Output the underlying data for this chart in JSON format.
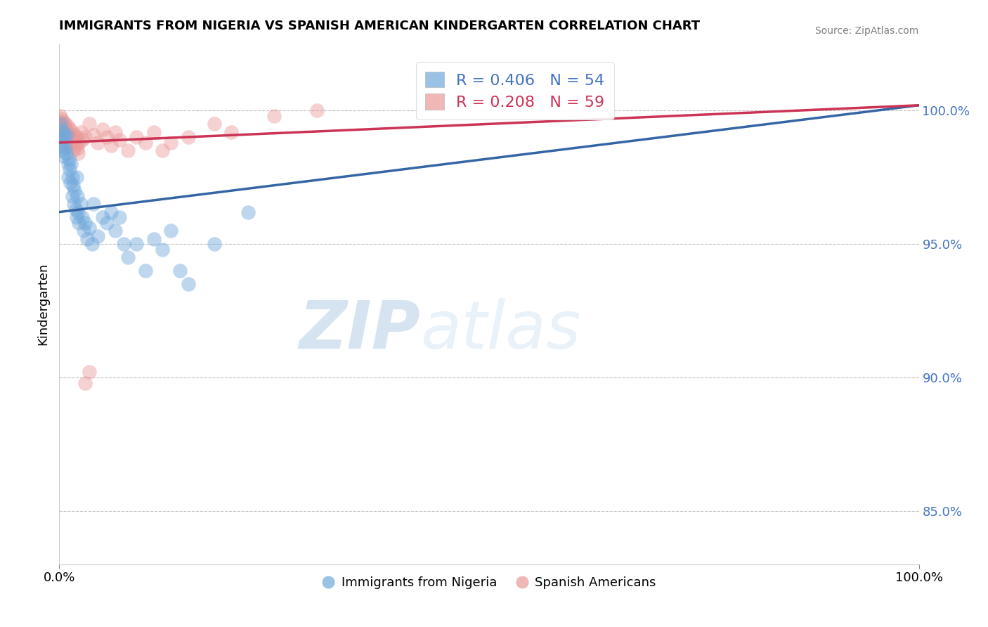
{
  "title": "IMMIGRANTS FROM NIGERIA VS SPANISH AMERICAN KINDERGARTEN CORRELATION CHART",
  "source": "Source: ZipAtlas.com",
  "ylabel": "Kindergarten",
  "xlim": [
    0.0,
    100.0
  ],
  "ylim": [
    83.0,
    102.5
  ],
  "yticks": [
    85.0,
    90.0,
    95.0,
    100.0
  ],
  "xticks": [
    0.0,
    100.0
  ],
  "xtick_labels": [
    "0.0%",
    "100.0%"
  ],
  "ytick_labels": [
    "85.0%",
    "90.0%",
    "95.0%",
    "100.0%"
  ],
  "blue_R": 0.406,
  "blue_N": 54,
  "pink_R": 0.208,
  "pink_N": 59,
  "blue_color": "#6fa8dc",
  "pink_color": "#ea9999",
  "blue_line_color": "#3465a4",
  "pink_line_color": "#cc3355",
  "legend_blue_label": "Immigrants from Nigeria",
  "legend_pink_label": "Spanish Americans",
  "watermark_zip": "ZIP",
  "watermark_atlas": "atlas",
  "blue_scatter_x": [
    0.1,
    0.2,
    0.2,
    0.3,
    0.3,
    0.4,
    0.5,
    0.5,
    0.6,
    0.7,
    0.8,
    0.9,
    1.0,
    1.0,
    1.1,
    1.2,
    1.3,
    1.4,
    1.5,
    1.5,
    1.6,
    1.7,
    1.8,
    1.9,
    2.0,
    2.0,
    2.1,
    2.2,
    2.3,
    2.5,
    2.7,
    2.8,
    3.0,
    3.2,
    3.5,
    3.8,
    4.0,
    4.5,
    5.0,
    5.5,
    6.0,
    6.5,
    7.0,
    7.5,
    8.0,
    9.0,
    10.0,
    11.0,
    12.0,
    13.0,
    14.0,
    15.0,
    18.0,
    22.0
  ],
  "blue_scatter_y": [
    99.5,
    99.3,
    98.8,
    99.0,
    98.5,
    98.7,
    99.2,
    98.3,
    99.0,
    98.6,
    98.4,
    99.1,
    98.0,
    97.5,
    98.2,
    97.8,
    97.3,
    98.0,
    97.5,
    96.8,
    97.2,
    96.5,
    97.0,
    96.3,
    97.5,
    96.0,
    96.8,
    96.2,
    95.8,
    96.5,
    96.0,
    95.5,
    95.8,
    95.2,
    95.6,
    95.0,
    96.5,
    95.3,
    96.0,
    95.8,
    96.2,
    95.5,
    96.0,
    95.0,
    94.5,
    95.0,
    94.0,
    95.2,
    94.8,
    95.5,
    94.0,
    93.5,
    95.0,
    96.2
  ],
  "pink_scatter_x": [
    0.1,
    0.1,
    0.2,
    0.2,
    0.2,
    0.3,
    0.3,
    0.4,
    0.4,
    0.5,
    0.5,
    0.6,
    0.6,
    0.7,
    0.7,
    0.8,
    0.8,
    0.9,
    0.9,
    1.0,
    1.0,
    1.0,
    1.1,
    1.2,
    1.3,
    1.4,
    1.5,
    1.6,
    1.7,
    1.8,
    1.9,
    2.0,
    2.1,
    2.2,
    2.3,
    2.5,
    2.7,
    3.0,
    3.5,
    4.0,
    4.5,
    5.0,
    5.5,
    6.0,
    6.5,
    7.0,
    8.0,
    9.0,
    10.0,
    11.0,
    12.0,
    13.0,
    15.0,
    18.0,
    20.0,
    25.0,
    30.0,
    3.0,
    3.5
  ],
  "pink_scatter_y": [
    99.8,
    99.5,
    99.7,
    99.3,
    99.6,
    99.5,
    99.2,
    99.4,
    99.0,
    99.3,
    99.6,
    99.1,
    99.4,
    99.2,
    99.5,
    99.0,
    99.3,
    98.8,
    99.2,
    99.0,
    98.7,
    99.4,
    99.1,
    99.3,
    99.0,
    98.8,
    99.2,
    98.5,
    98.9,
    99.1,
    98.7,
    99.0,
    98.6,
    98.4,
    98.8,
    99.2,
    98.9,
    99.0,
    99.5,
    99.1,
    98.8,
    99.3,
    99.0,
    98.7,
    99.2,
    98.9,
    98.5,
    99.0,
    98.8,
    99.2,
    98.5,
    98.8,
    99.0,
    99.5,
    99.2,
    99.8,
    100.0,
    89.8,
    90.2
  ]
}
